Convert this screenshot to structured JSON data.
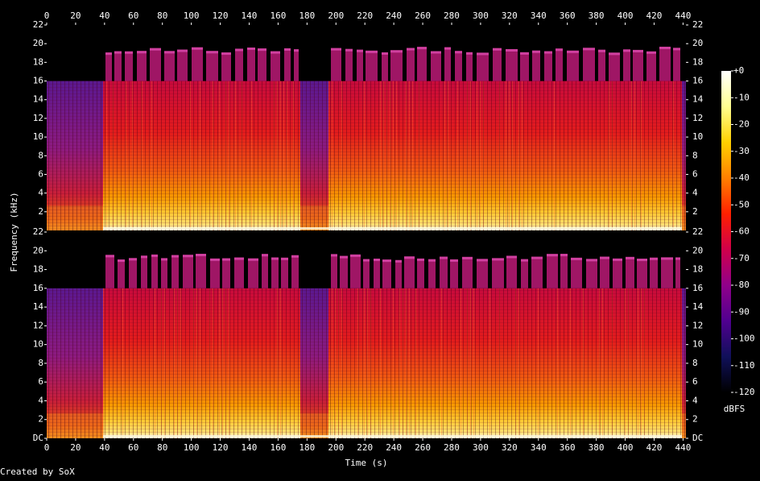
{
  "chart_data": {
    "type": "spectrogram",
    "x_label": "Time (s)",
    "y_label": "Frequency (kHz)",
    "xlim": [
      0,
      442
    ],
    "xticks": [
      0,
      20,
      40,
      60,
      80,
      100,
      120,
      140,
      160,
      180,
      200,
      220,
      240,
      260,
      280,
      300,
      320,
      340,
      360,
      380,
      400,
      420,
      440
    ],
    "panels": [
      {
        "ylim": [
          0,
          22
        ],
        "yticks": [
          2,
          4,
          6,
          8,
          10,
          12,
          14,
          16,
          18,
          20,
          22
        ]
      },
      {
        "ylim": [
          0,
          22
        ],
        "yticks": [
          {
            "value": 0,
            "label": "DC"
          },
          2,
          4,
          6,
          8,
          10,
          12,
          14,
          16,
          18,
          20,
          22
        ]
      }
    ],
    "colorbar": {
      "label": "dBFS",
      "ylim": [
        -120,
        0
      ],
      "yticks": [
        {
          "value": 0,
          "label": "+0"
        },
        -10,
        -20,
        -30,
        -40,
        -50,
        -60,
        -70,
        -80,
        -90,
        -100,
        -110,
        -120
      ],
      "colors": [
        "#ffffff",
        "#ffff90",
        "#ffd000",
        "#ff8000",
        "#ff2000",
        "#d0004a",
        "#90008a",
        "#500090",
        "#10105a",
        "#000000"
      ]
    }
  },
  "credit": "Created by SoX"
}
